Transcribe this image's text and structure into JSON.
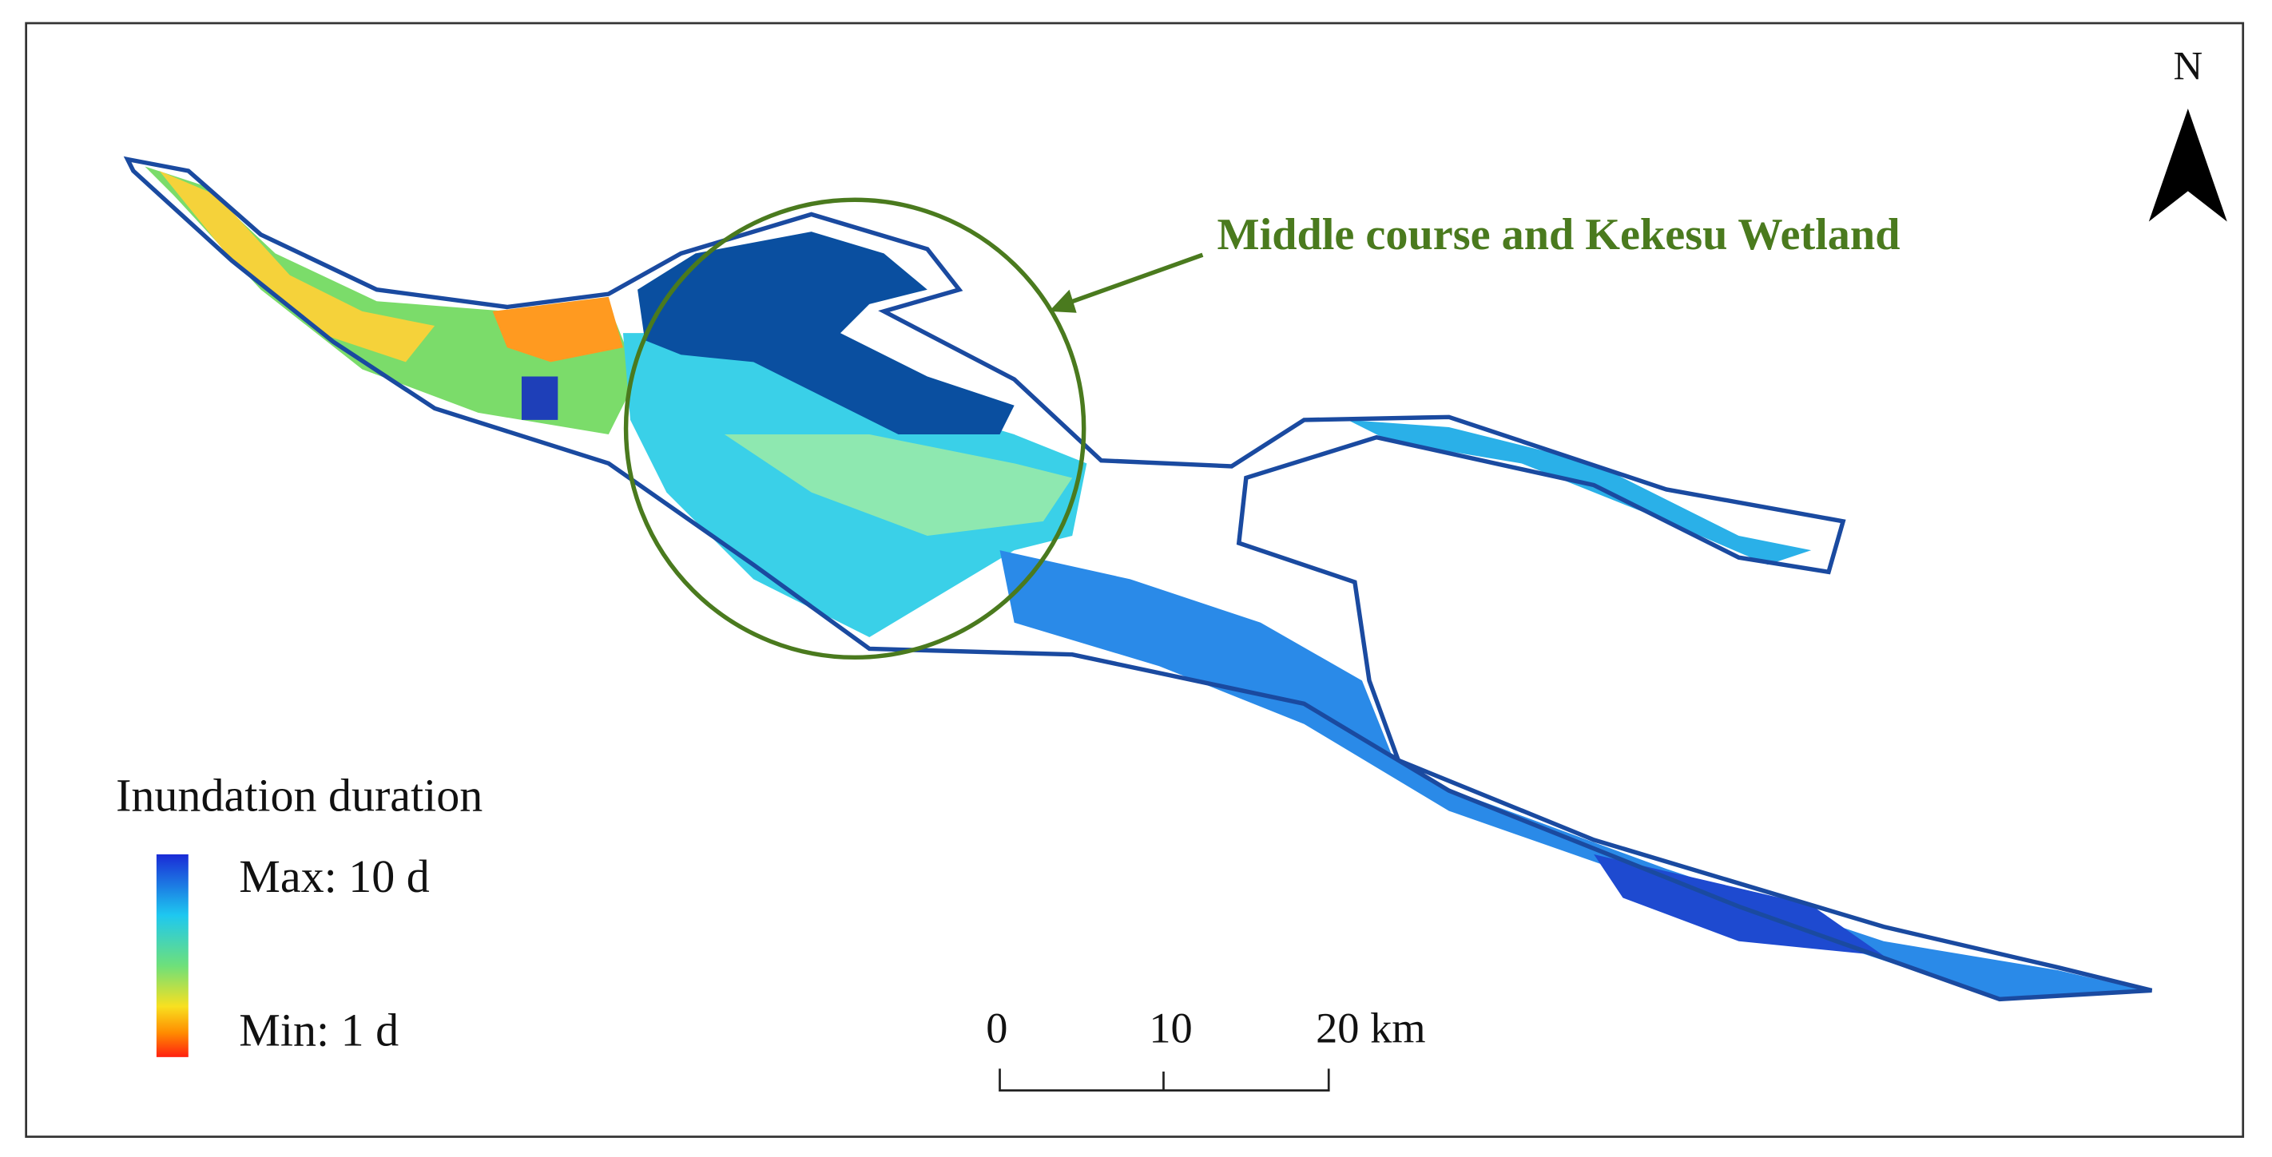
{
  "annotation": "Middle course and Kekesu Wetland",
  "north_arrow": {
    "label": "N"
  },
  "legend": {
    "title": "Inundation duration",
    "max_label": "Max: 10 d",
    "min_label": "Min: 1 d"
  },
  "scale_bar": {
    "labels": [
      "0",
      "10",
      "20 km"
    ]
  }
}
